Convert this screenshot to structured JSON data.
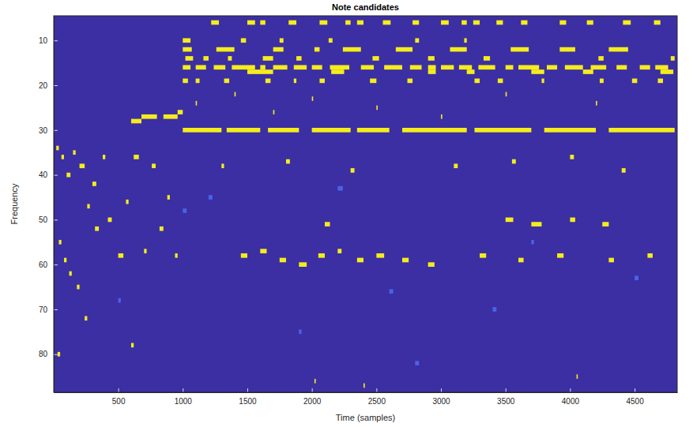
{
  "chart_data": {
    "type": "heatmap",
    "title": "Note candidates",
    "x_label": "Time (samples)",
    "y_label": "Frequency",
    "xlim": [
      0.5,
      4830
    ],
    "ylim": [
      88.5,
      4.5
    ],
    "xticks": [
      500,
      1000,
      1500,
      2000,
      2500,
      3000,
      3500,
      4000,
      4500
    ],
    "yticks": [
      10,
      20,
      30,
      40,
      50,
      60,
      70,
      80
    ],
    "levels": [
      0,
      0.5,
      1
    ],
    "colors": [
      "#3b2fa3",
      "#4a63e6",
      "#f5ec1c"
    ],
    "cells": [
      [
        1220,
        1280,
        6,
        1
      ],
      [
        1500,
        1560,
        6,
        1
      ],
      [
        1600,
        1640,
        6,
        1
      ],
      [
        1820,
        1880,
        6,
        1
      ],
      [
        2060,
        2120,
        6,
        1
      ],
      [
        2260,
        2300,
        6,
        1
      ],
      [
        2350,
        2400,
        6,
        1
      ],
      [
        2550,
        2610,
        6,
        1
      ],
      [
        2780,
        2830,
        6,
        1
      ],
      [
        3000,
        3060,
        6,
        1
      ],
      [
        3160,
        3200,
        6,
        1
      ],
      [
        3250,
        3300,
        6,
        1
      ],
      [
        3430,
        3480,
        6,
        1
      ],
      [
        3620,
        3670,
        6,
        1
      ],
      [
        3920,
        3970,
        6,
        1
      ],
      [
        4130,
        4180,
        6,
        1
      ],
      [
        4410,
        4470,
        6,
        1
      ],
      [
        4650,
        4700,
        6,
        1
      ],
      [
        1000,
        1060,
        10,
        1
      ],
      [
        1450,
        1490,
        10,
        1
      ],
      [
        1750,
        1780,
        10,
        1
      ],
      [
        2130,
        2160,
        10,
        1
      ],
      [
        2800,
        2830,
        10,
        1
      ],
      [
        3180,
        3200,
        10,
        1
      ],
      [
        1000,
        1070,
        12,
        1
      ],
      [
        1260,
        1400,
        12,
        1
      ],
      [
        1700,
        1780,
        12,
        1
      ],
      [
        2020,
        2060,
        12,
        1
      ],
      [
        2240,
        2380,
        12,
        1
      ],
      [
        2650,
        2780,
        12,
        1
      ],
      [
        3070,
        3200,
        12,
        1
      ],
      [
        3540,
        3680,
        12,
        1
      ],
      [
        3920,
        4040,
        12,
        1
      ],
      [
        4300,
        4450,
        12,
        1
      ],
      [
        1020,
        1080,
        14,
        1
      ],
      [
        1160,
        1200,
        14,
        1
      ],
      [
        1350,
        1380,
        14,
        1
      ],
      [
        1620,
        1700,
        14,
        1
      ],
      [
        1880,
        1920,
        14,
        1
      ],
      [
        2470,
        2520,
        14,
        1
      ],
      [
        2900,
        2950,
        14,
        1
      ],
      [
        3330,
        3380,
        14,
        1
      ],
      [
        4220,
        4260,
        14,
        1
      ],
      [
        4780,
        4810,
        14,
        1
      ],
      [
        1000,
        1060,
        16,
        1
      ],
      [
        1100,
        1180,
        16,
        1
      ],
      [
        1240,
        1330,
        16,
        1
      ],
      [
        1380,
        1560,
        16,
        1
      ],
      [
        1600,
        1640,
        16,
        1
      ],
      [
        1700,
        1810,
        16,
        1
      ],
      [
        1860,
        1960,
        16,
        1
      ],
      [
        2000,
        2080,
        16,
        1
      ],
      [
        2140,
        2290,
        16,
        1
      ],
      [
        2380,
        2480,
        16,
        1
      ],
      [
        2560,
        2700,
        16,
        1
      ],
      [
        2760,
        2850,
        16,
        1
      ],
      [
        2900,
        2960,
        16,
        1
      ],
      [
        3000,
        3100,
        16,
        1
      ],
      [
        3140,
        3240,
        16,
        1
      ],
      [
        3290,
        3420,
        16,
        1
      ],
      [
        3500,
        3560,
        16,
        1
      ],
      [
        3600,
        3760,
        16,
        1
      ],
      [
        3820,
        3900,
        16,
        1
      ],
      [
        3960,
        4100,
        16,
        1
      ],
      [
        4160,
        4280,
        16,
        1
      ],
      [
        4360,
        4440,
        16,
        1
      ],
      [
        4540,
        4620,
        16,
        1
      ],
      [
        4660,
        4760,
        16,
        1
      ],
      [
        1500,
        1700,
        17,
        1
      ],
      [
        2150,
        2250,
        17,
        1
      ],
      [
        2900,
        2960,
        17,
        1
      ],
      [
        3200,
        3260,
        17,
        1
      ],
      [
        3700,
        3800,
        17,
        1
      ],
      [
        4100,
        4180,
        17,
        1
      ],
      [
        4700,
        4800,
        17,
        1
      ],
      [
        1000,
        1040,
        19,
        1
      ],
      [
        1100,
        1130,
        19,
        1
      ],
      [
        1320,
        1360,
        19,
        1
      ],
      [
        1640,
        1680,
        19,
        1
      ],
      [
        1860,
        1880,
        19,
        1
      ],
      [
        2060,
        2100,
        19,
        1
      ],
      [
        2450,
        2500,
        19,
        1
      ],
      [
        2740,
        2780,
        19,
        1
      ],
      [
        3260,
        3300,
        19,
        1
      ],
      [
        3440,
        3480,
        19,
        1
      ],
      [
        3780,
        3800,
        19,
        1
      ],
      [
        4230,
        4260,
        19,
        1
      ],
      [
        4480,
        4520,
        19,
        1
      ],
      [
        4680,
        4720,
        19,
        1
      ],
      [
        1100,
        1110,
        24,
        1
      ],
      [
        1400,
        1410,
        22,
        1
      ],
      [
        1700,
        1710,
        26,
        1
      ],
      [
        2000,
        2010,
        23,
        1
      ],
      [
        2500,
        2510,
        25,
        1
      ],
      [
        3000,
        3010,
        27,
        1
      ],
      [
        3500,
        3510,
        22,
        1
      ],
      [
        4200,
        4210,
        24,
        1
      ],
      [
        600,
        680,
        28,
        1
      ],
      [
        680,
        800,
        27,
        1
      ],
      [
        850,
        960,
        27,
        1
      ],
      [
        960,
        1000,
        26,
        1
      ],
      [
        1000,
        1300,
        30,
        1
      ],
      [
        1340,
        1600,
        30,
        1
      ],
      [
        1660,
        1900,
        30,
        1
      ],
      [
        2000,
        2300,
        30,
        1
      ],
      [
        2350,
        2600,
        30,
        1
      ],
      [
        2700,
        3200,
        30,
        1
      ],
      [
        3260,
        3700,
        30,
        1
      ],
      [
        3800,
        4200,
        30,
        1
      ],
      [
        4300,
        4810,
        30,
        1
      ],
      [
        20,
        40,
        34,
        1
      ],
      [
        60,
        80,
        36,
        1
      ],
      [
        100,
        130,
        40,
        1
      ],
      [
        150,
        170,
        35,
        1
      ],
      [
        200,
        240,
        38,
        1
      ],
      [
        260,
        280,
        47,
        1
      ],
      [
        300,
        330,
        42,
        1
      ],
      [
        320,
        350,
        52,
        1
      ],
      [
        380,
        400,
        36,
        1
      ],
      [
        420,
        450,
        50,
        1
      ],
      [
        500,
        540,
        58,
        1
      ],
      [
        560,
        580,
        46,
        1
      ],
      [
        40,
        60,
        55,
        1
      ],
      [
        80,
        100,
        59,
        1
      ],
      [
        120,
        140,
        62,
        1
      ],
      [
        620,
        660,
        36,
        1
      ],
      [
        700,
        720,
        57,
        1
      ],
      [
        760,
        790,
        38,
        1
      ],
      [
        820,
        850,
        52,
        1
      ],
      [
        880,
        900,
        45,
        1
      ],
      [
        940,
        960,
        58,
        1
      ],
      [
        180,
        200,
        65,
        1
      ],
      [
        240,
        260,
        72,
        1
      ],
      [
        600,
        620,
        78,
        1
      ],
      [
        30,
        50,
        80,
        1
      ],
      [
        1450,
        1500,
        58,
        1
      ],
      [
        1600,
        1650,
        57,
        1
      ],
      [
        1750,
        1800,
        59,
        1
      ],
      [
        1900,
        1960,
        60,
        1
      ],
      [
        2050,
        2100,
        58,
        1
      ],
      [
        2200,
        2230,
        57,
        1
      ],
      [
        2350,
        2400,
        59,
        1
      ],
      [
        2500,
        2560,
        58,
        1
      ],
      [
        2700,
        2750,
        59,
        1
      ],
      [
        2900,
        2950,
        60,
        1
      ],
      [
        3300,
        3350,
        58,
        1
      ],
      [
        3600,
        3640,
        59,
        1
      ],
      [
        3900,
        3950,
        58,
        1
      ],
      [
        4300,
        4340,
        59,
        1
      ],
      [
        4600,
        4640,
        58,
        1
      ],
      [
        3500,
        3560,
        50,
        1
      ],
      [
        3700,
        3780,
        51,
        1
      ],
      [
        4000,
        4040,
        50,
        1
      ],
      [
        4250,
        4300,
        51,
        1
      ],
      [
        2100,
        2140,
        51,
        1
      ],
      [
        1300,
        1320,
        38,
        1
      ],
      [
        1800,
        1830,
        37,
        1
      ],
      [
        2300,
        2330,
        39,
        1
      ],
      [
        3100,
        3130,
        38,
        1
      ],
      [
        3550,
        3580,
        37,
        1
      ],
      [
        4000,
        4030,
        36,
        1
      ],
      [
        4400,
        4430,
        39,
        1
      ],
      [
        1200,
        1230,
        45,
        0.5
      ],
      [
        2600,
        2630,
        66,
        0.5
      ],
      [
        3400,
        3430,
        70,
        0.5
      ],
      [
        1900,
        1920,
        75,
        0.5
      ],
      [
        2800,
        2830,
        82,
        0.5
      ],
      [
        500,
        520,
        68,
        0.5
      ],
      [
        4500,
        4530,
        63,
        0.5
      ],
      [
        3700,
        3720,
        55,
        0.5
      ],
      [
        1000,
        1030,
        48,
        0.5
      ],
      [
        2200,
        2240,
        43,
        0.5
      ],
      [
        2020,
        2030,
        86,
        1
      ],
      [
        2400,
        2410,
        87,
        1
      ],
      [
        4050,
        4060,
        85,
        1
      ]
    ]
  }
}
